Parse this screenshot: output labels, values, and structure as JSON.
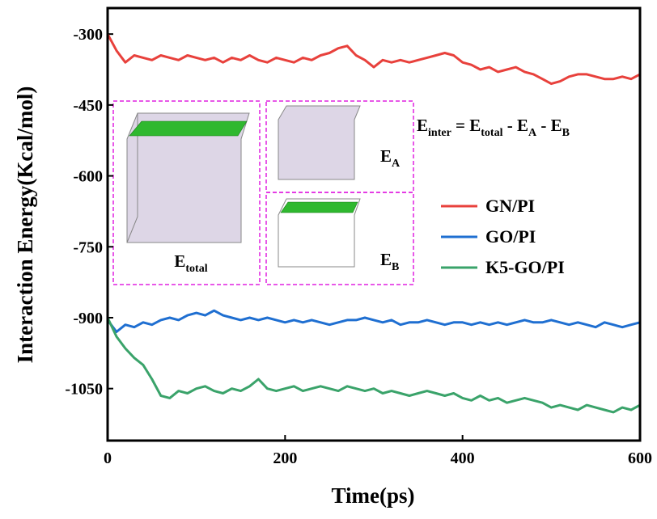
{
  "chart_data": {
    "type": "line",
    "x_label": "Time(ps)",
    "y_label": "Interaction Energy(Kcal/mol)",
    "x": [
      0,
      10,
      20,
      30,
      40,
      50,
      60,
      70,
      80,
      90,
      100,
      110,
      120,
      130,
      140,
      150,
      160,
      170,
      180,
      190,
      200,
      210,
      220,
      230,
      240,
      250,
      260,
      270,
      280,
      290,
      300,
      310,
      320,
      330,
      340,
      350,
      360,
      370,
      380,
      390,
      400,
      410,
      420,
      430,
      440,
      450,
      460,
      470,
      480,
      490,
      500,
      510,
      520,
      530,
      540,
      550,
      560,
      570,
      580,
      590,
      600
    ],
    "series": [
      {
        "name": "GN/PI",
        "color": "#e8413c",
        "values": [
          -300,
          -335,
          -360,
          -345,
          -350,
          -355,
          -345,
          -350,
          -355,
          -345,
          -350,
          -355,
          -350,
          -360,
          -350,
          -355,
          -345,
          -355,
          -360,
          -350,
          -355,
          -360,
          -350,
          -355,
          -345,
          -340,
          -330,
          -325,
          -345,
          -355,
          -370,
          -355,
          -360,
          -355,
          -360,
          -355,
          -350,
          -345,
          -340,
          -345,
          -360,
          -365,
          -375,
          -370,
          -380,
          -375,
          -370,
          -380,
          -385,
          -395,
          -405,
          -400,
          -390,
          -385,
          -385,
          -390,
          -395,
          -395,
          -390,
          -395,
          -385
        ]
      },
      {
        "name": "GO/PI",
        "color": "#1f6fd1",
        "values": [
          -905,
          -930,
          -915,
          -920,
          -910,
          -915,
          -905,
          -900,
          -905,
          -895,
          -890,
          -895,
          -885,
          -895,
          -900,
          -905,
          -900,
          -905,
          -900,
          -905,
          -910,
          -905,
          -910,
          -905,
          -910,
          -915,
          -910,
          -905,
          -905,
          -900,
          -905,
          -910,
          -905,
          -915,
          -910,
          -910,
          -905,
          -910,
          -915,
          -910,
          -910,
          -915,
          -910,
          -915,
          -910,
          -915,
          -910,
          -905,
          -910,
          -910,
          -905,
          -910,
          -915,
          -910,
          -915,
          -920,
          -910,
          -915,
          -920,
          -915,
          -910
        ]
      },
      {
        "name": "K5-GO/PI",
        "color": "#3aa36a",
        "values": [
          -900,
          -940,
          -965,
          -985,
          -1000,
          -1030,
          -1065,
          -1070,
          -1055,
          -1060,
          -1050,
          -1045,
          -1055,
          -1060,
          -1050,
          -1055,
          -1045,
          -1030,
          -1050,
          -1055,
          -1050,
          -1045,
          -1055,
          -1050,
          -1045,
          -1050,
          -1055,
          -1045,
          -1050,
          -1055,
          -1050,
          -1060,
          -1055,
          -1060,
          -1065,
          -1060,
          -1055,
          -1060,
          -1065,
          -1060,
          -1070,
          -1075,
          -1065,
          -1075,
          -1070,
          -1080,
          -1075,
          -1070,
          -1075,
          -1080,
          -1090,
          -1085,
          -1090,
          -1095,
          -1085,
          -1090,
          -1095,
          -1100,
          -1090,
          -1095,
          -1085
        ]
      }
    ],
    "xlim": [
      0,
      600
    ],
    "xticks": [
      0,
      200,
      400,
      600
    ],
    "ylim": [
      -1160,
      -245
    ],
    "yticks": [
      -300,
      -450,
      -600,
      -750,
      -900,
      -1050
    ],
    "legend": "right",
    "equation": [
      {
        "text": "E",
        "sub": "inter"
      },
      {
        "text": " = E",
        "sub": "total"
      },
      {
        "text": " - E",
        "sub": "A"
      },
      {
        "text": " - E",
        "sub": "B"
      }
    ],
    "inset_labels": [
      {
        "text": "E",
        "sub": "total"
      },
      {
        "text": "E",
        "sub": "A"
      },
      {
        "text": "E",
        "sub": "B"
      }
    ]
  }
}
